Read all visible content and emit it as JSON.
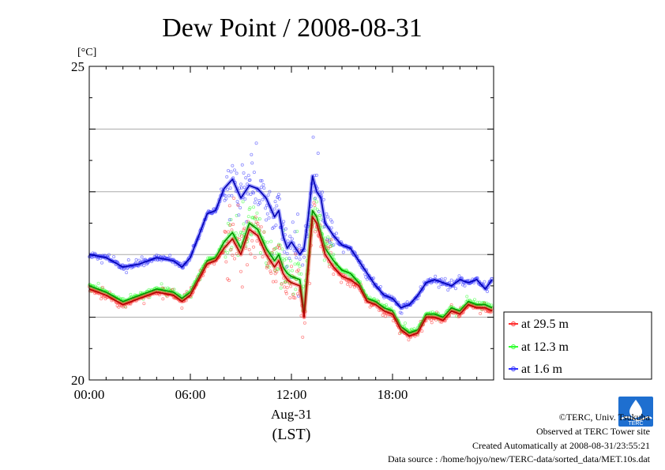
{
  "chart_data": {
    "type": "line",
    "title": "Dew Point / 2008-08-31",
    "unit_label": "[°C]",
    "ylim": [
      20,
      25
    ],
    "y_ticks": [
      "25",
      "20"
    ],
    "y_gridlines": [
      21,
      22,
      23,
      24
    ],
    "xlim": [
      "00:00",
      "24:00"
    ],
    "x_ticks": [
      "00:00",
      "06:00",
      "12:00",
      "18:00"
    ],
    "x_date_label": "Aug-31",
    "x_axis_label": "(LST)",
    "legend_position": "right",
    "series": [
      {
        "name": "at 29.5 m",
        "color": "#ff3030",
        "x": [
          "00:00",
          "01:00",
          "02:00",
          "03:00",
          "04:00",
          "05:00",
          "05:30",
          "06:00",
          "06:30",
          "07:00",
          "07:30",
          "08:00",
          "08:30",
          "09:00",
          "09:30",
          "10:00",
          "10:30",
          "11:00",
          "11:15",
          "11:30",
          "11:45",
          "12:00",
          "12:30",
          "12:45",
          "13:00",
          "13:15",
          "13:30",
          "13:45",
          "14:00",
          "14:30",
          "15:00",
          "15:30",
          "16:00",
          "16:30",
          "17:00",
          "17:30",
          "18:00",
          "18:30",
          "19:00",
          "19:30",
          "20:00",
          "20:30",
          "21:00",
          "21:30",
          "22:00",
          "22:30",
          "23:00",
          "23:30",
          "23:55"
        ],
        "values": [
          21.45,
          21.35,
          21.2,
          21.3,
          21.4,
          21.35,
          21.25,
          21.35,
          21.6,
          21.85,
          21.9,
          22.1,
          22.25,
          22.0,
          22.4,
          22.3,
          22.0,
          21.8,
          21.9,
          21.7,
          21.6,
          21.55,
          21.5,
          21.0,
          21.8,
          22.6,
          22.5,
          22.25,
          22.0,
          21.8,
          21.65,
          21.6,
          21.5,
          21.25,
          21.2,
          21.1,
          21.05,
          20.8,
          20.7,
          20.75,
          21.0,
          21.0,
          20.95,
          21.1,
          21.05,
          21.2,
          21.15,
          21.15,
          21.1
        ]
      },
      {
        "name": "at 12.3 m",
        "color": "#30ff30",
        "x": [
          "00:00",
          "01:00",
          "02:00",
          "03:00",
          "04:00",
          "05:00",
          "05:30",
          "06:00",
          "06:30",
          "07:00",
          "07:30",
          "08:00",
          "08:30",
          "09:00",
          "09:30",
          "10:00",
          "10:30",
          "11:00",
          "11:15",
          "11:30",
          "11:45",
          "12:00",
          "12:30",
          "12:45",
          "13:00",
          "13:15",
          "13:30",
          "13:45",
          "14:00",
          "14:30",
          "15:00",
          "15:30",
          "16:00",
          "16:30",
          "17:00",
          "17:30",
          "18:00",
          "18:30",
          "19:00",
          "19:30",
          "20:00",
          "20:30",
          "21:00",
          "21:30",
          "22:00",
          "22:30",
          "23:00",
          "23:30",
          "23:55"
        ],
        "values": [
          21.5,
          21.4,
          21.25,
          21.35,
          21.45,
          21.4,
          21.3,
          21.4,
          21.65,
          21.9,
          21.95,
          22.2,
          22.35,
          22.1,
          22.5,
          22.4,
          22.1,
          21.9,
          22.0,
          21.8,
          21.7,
          21.65,
          21.6,
          21.1,
          21.9,
          22.7,
          22.6,
          22.35,
          22.1,
          21.9,
          21.75,
          21.7,
          21.55,
          21.3,
          21.25,
          21.15,
          21.1,
          20.85,
          20.75,
          20.8,
          21.05,
          21.05,
          21.0,
          21.15,
          21.1,
          21.25,
          21.2,
          21.2,
          21.15
        ]
      },
      {
        "name": "at 1.6 m",
        "color": "#3030ff",
        "x": [
          "00:00",
          "01:00",
          "02:00",
          "03:00",
          "04:00",
          "05:00",
          "05:30",
          "06:00",
          "06:30",
          "07:00",
          "07:30",
          "08:00",
          "08:30",
          "09:00",
          "09:30",
          "10:00",
          "10:30",
          "11:00",
          "11:15",
          "11:30",
          "11:45",
          "12:00",
          "12:30",
          "12:45",
          "13:00",
          "13:15",
          "13:30",
          "13:45",
          "14:00",
          "14:30",
          "15:00",
          "15:30",
          "16:00",
          "16:30",
          "17:00",
          "17:30",
          "18:00",
          "18:30",
          "19:00",
          "19:30",
          "20:00",
          "20:30",
          "21:00",
          "21:30",
          "22:00",
          "22:30",
          "23:00",
          "23:30",
          "23:55"
        ],
        "values": [
          22.0,
          21.95,
          21.8,
          21.85,
          21.95,
          21.9,
          21.8,
          21.95,
          22.3,
          22.65,
          22.7,
          23.05,
          23.2,
          22.9,
          23.1,
          23.05,
          22.9,
          22.6,
          22.7,
          22.3,
          22.1,
          22.2,
          22.0,
          22.1,
          22.6,
          23.25,
          23.0,
          22.9,
          22.5,
          22.3,
          22.15,
          22.1,
          21.9,
          21.7,
          21.5,
          21.35,
          21.3,
          21.15,
          21.2,
          21.35,
          21.55,
          21.6,
          21.55,
          21.5,
          21.6,
          21.55,
          21.6,
          21.45,
          21.6
        ]
      }
    ]
  },
  "footer": {
    "copyright": "©TERC, Univ. Tsukuba",
    "observed": "Observed at TERC Tower site",
    "created": "Created Automatically at 2008-08-31/23:55:21",
    "source": "Data source : /home/hojyo/new/TERC-data/sorted_data/MET.10s.dat"
  },
  "logo": {
    "text": "TERC"
  }
}
